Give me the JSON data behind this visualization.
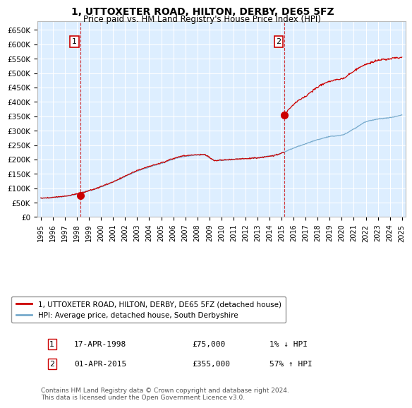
{
  "title": "1, UTTOXETER ROAD, HILTON, DERBY, DE65 5FZ",
  "subtitle": "Price paid vs. HM Land Registry's House Price Index (HPI)",
  "ylim": [
    0,
    680000
  ],
  "yticks": [
    0,
    50000,
    100000,
    150000,
    200000,
    250000,
    300000,
    350000,
    400000,
    450000,
    500000,
    550000,
    600000,
    650000
  ],
  "ytick_labels": [
    "£0",
    "£50K",
    "£100K",
    "£150K",
    "£200K",
    "£250K",
    "£300K",
    "£350K",
    "£400K",
    "£450K",
    "£500K",
    "£550K",
    "£600K",
    "£650K"
  ],
  "xlim_start": 1994.7,
  "xlim_end": 2025.3,
  "plot_bg_color": "#ddeeff",
  "fig_bg_color": "#ffffff",
  "grid_color": "#ffffff",
  "red_line_color": "#cc0000",
  "blue_line_color": "#77aacc",
  "point1_x": 1998.29,
  "point1_y": 75000,
  "point2_x": 2015.25,
  "point2_y": 355000,
  "legend_line1": "1, UTTOXETER ROAD, HILTON, DERBY, DE65 5FZ (detached house)",
  "legend_line2": "HPI: Average price, detached house, South Derbyshire",
  "footnote": "Contains HM Land Registry data © Crown copyright and database right 2024.\nThis data is licensed under the Open Government Licence v3.0.",
  "xtick_years": [
    1995,
    1996,
    1997,
    1998,
    1999,
    2000,
    2001,
    2002,
    2003,
    2004,
    2005,
    2006,
    2007,
    2008,
    2009,
    2010,
    2011,
    2012,
    2013,
    2014,
    2015,
    2016,
    2017,
    2018,
    2019,
    2020,
    2021,
    2022,
    2023,
    2024,
    2025
  ],
  "point1_date": "17-APR-1998",
  "point1_price": "£75,000",
  "point1_hpi": "1% ↓ HPI",
  "point2_date": "01-APR-2015",
  "point2_price": "£355,000",
  "point2_hpi": "57% ↑ HPI"
}
